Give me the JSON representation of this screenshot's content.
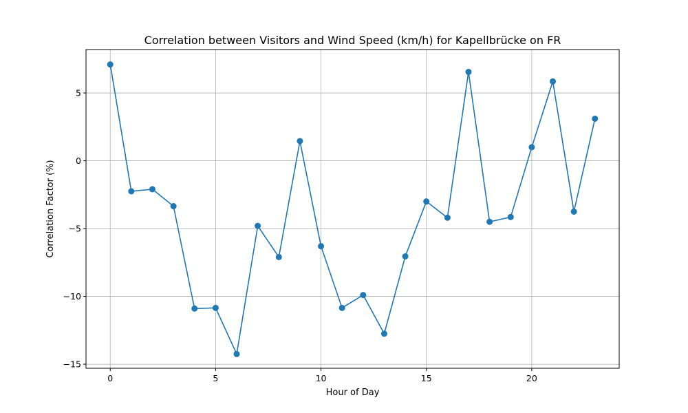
{
  "chart_data": {
    "type": "line",
    "title": "Correlation between Visitors and Wind Speed (km/h) for Kapellbrücke on FR",
    "xlabel": "Hour of Day",
    "ylabel": "Correlation Factor (%)",
    "xlim": [
      -1.15,
      24.15
    ],
    "ylim": [
      -15.3,
      8.2
    ],
    "x_ticks": [
      0,
      5,
      10,
      15,
      20
    ],
    "y_ticks": [
      -15,
      -10,
      -5,
      0,
      5
    ],
    "grid": true,
    "marker": "circle",
    "series": [
      {
        "color": "#1f77b4",
        "x": [
          0,
          1,
          2,
          3,
          4,
          5,
          6,
          7,
          8,
          9,
          10,
          11,
          12,
          13,
          14,
          15,
          16,
          17,
          18,
          19,
          20,
          21,
          22,
          23
        ],
        "values": [
          7.1,
          -2.25,
          -2.1,
          -3.35,
          -10.9,
          -10.85,
          -14.25,
          -4.8,
          -7.1,
          1.45,
          -6.3,
          -10.85,
          -9.9,
          -12.75,
          -7.05,
          -3.0,
          -4.2,
          6.55,
          -4.5,
          -4.15,
          1.0,
          5.85,
          -3.75,
          3.1
        ]
      }
    ]
  }
}
